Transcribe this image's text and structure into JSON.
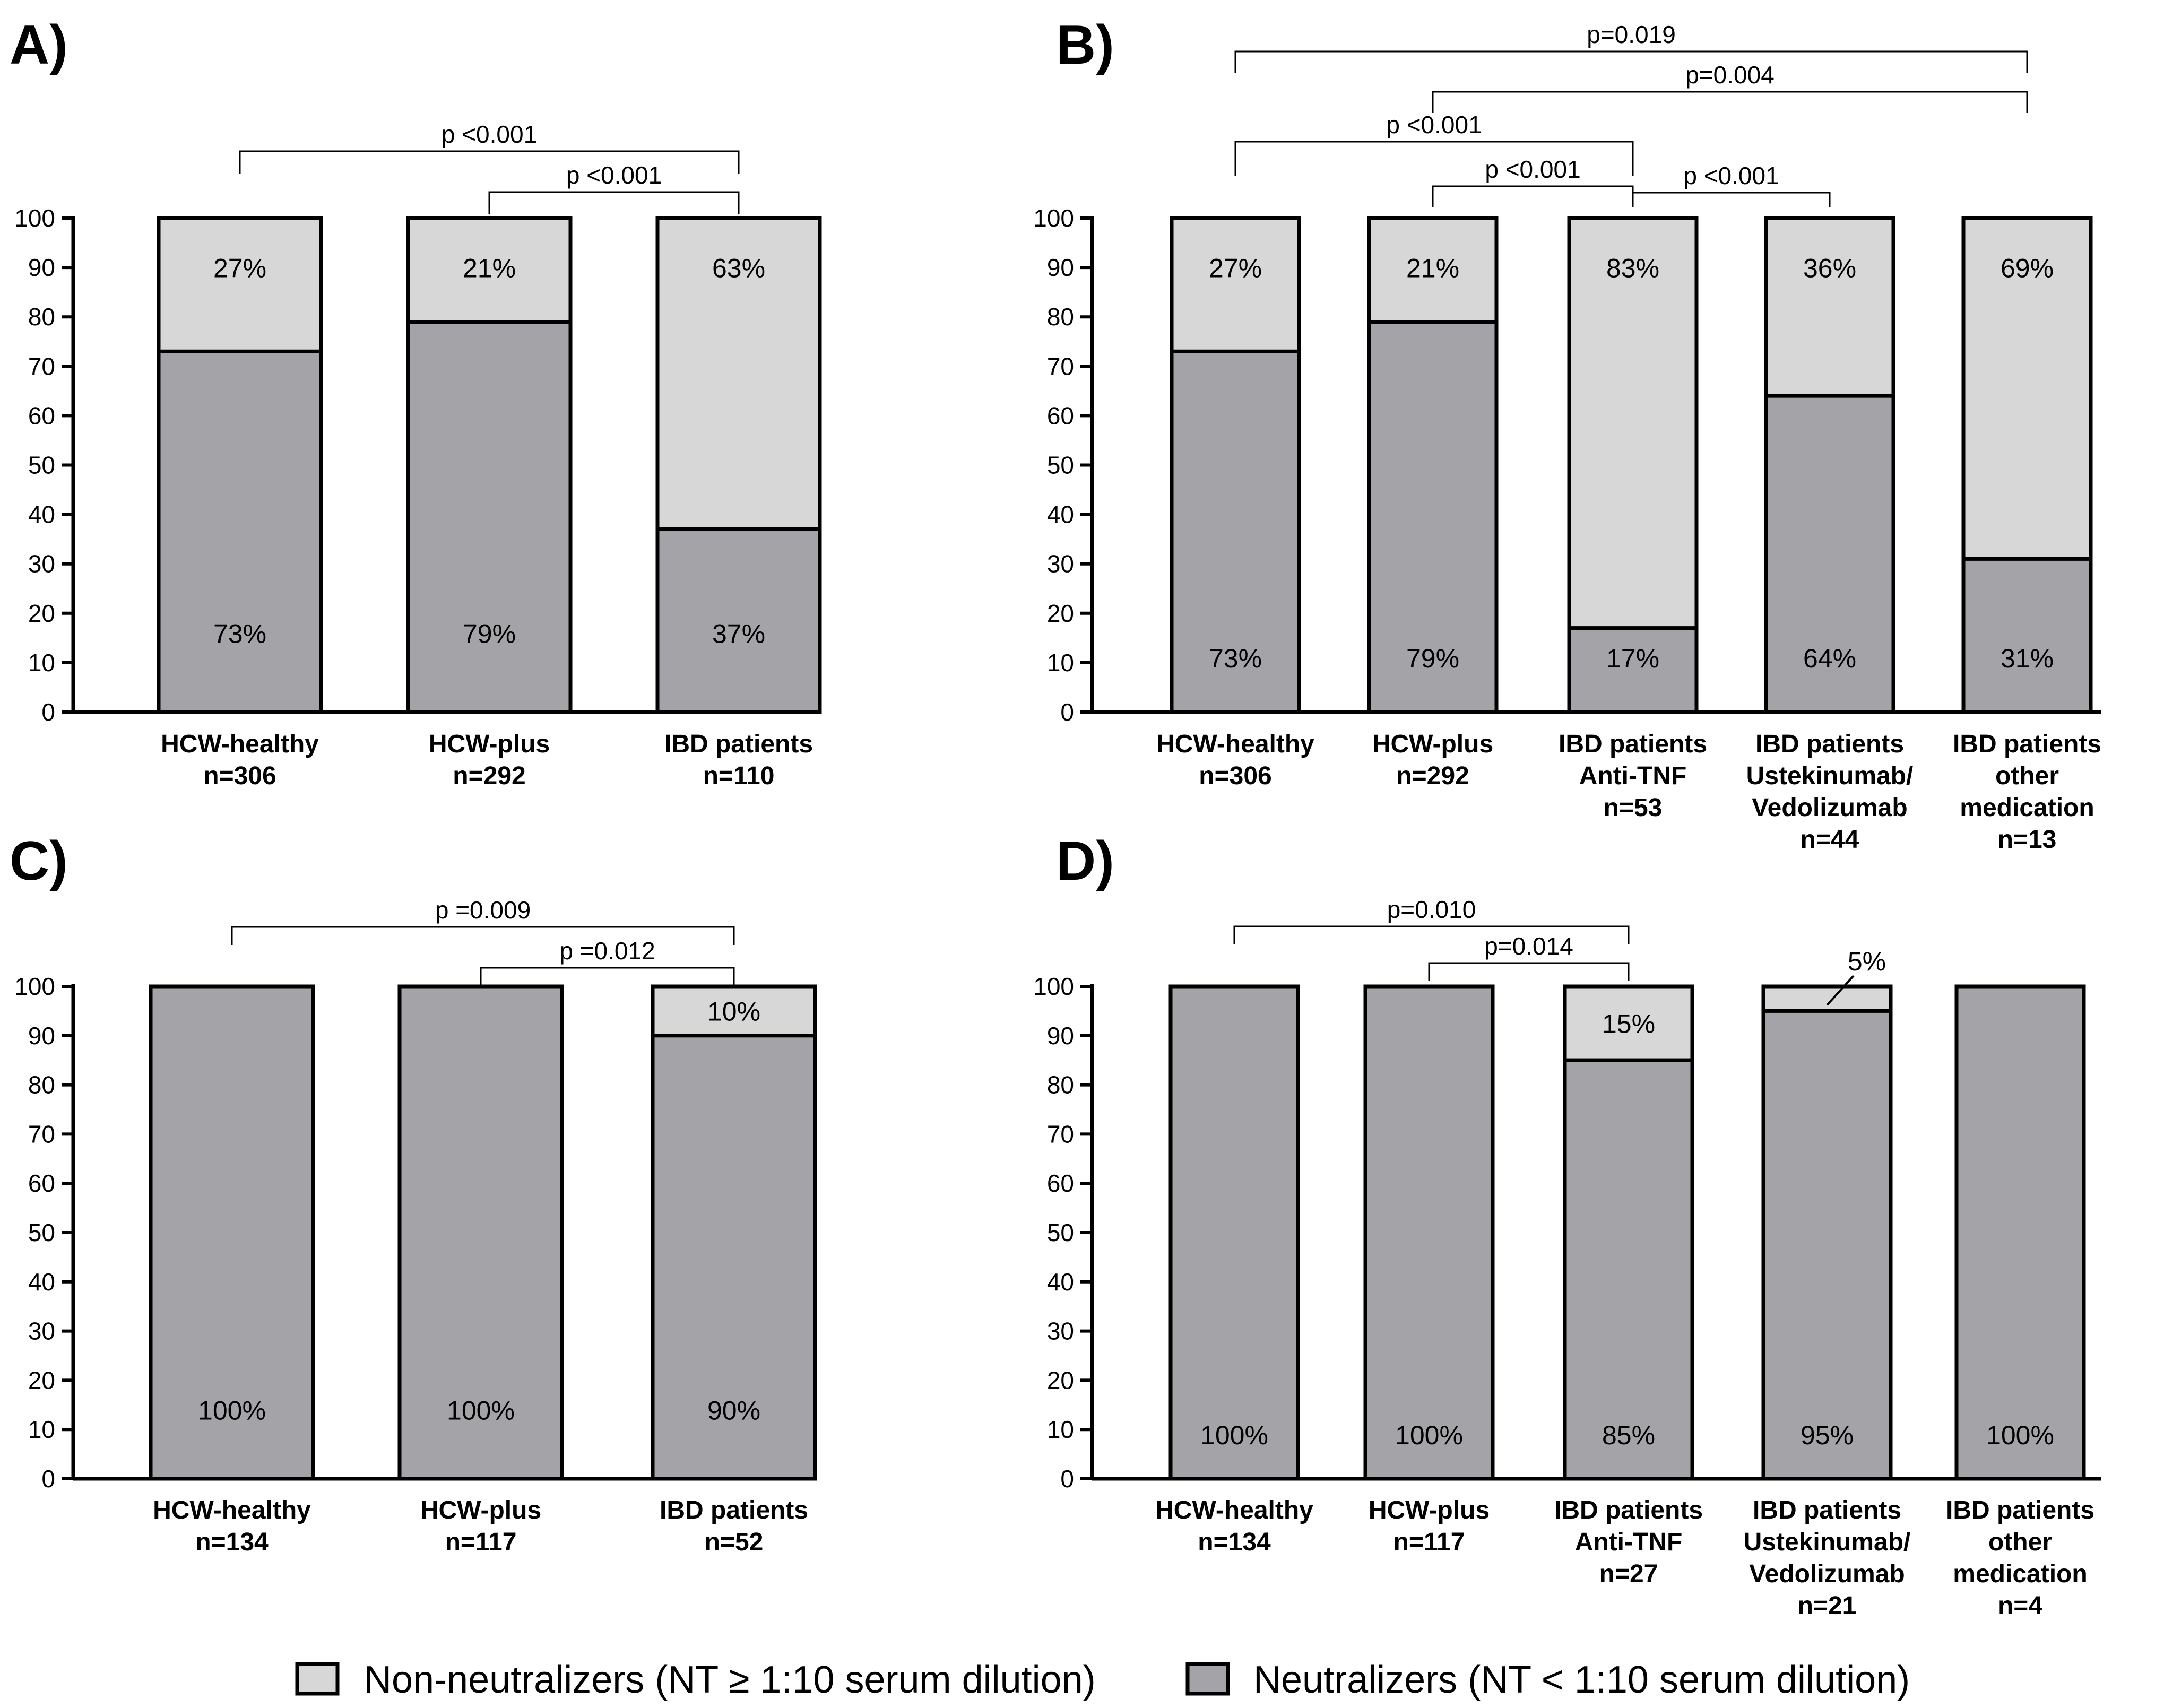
{
  "colors": {
    "neutralizer": "#a4a3a8",
    "non_neutralizer": "#d7d7d7",
    "stroke": "#000000"
  },
  "legend": {
    "non_neutralizers": "Non-neutralizers (NT ≥ 1:10 serum dilution)",
    "neutralizers": "Neutralizers (NT < 1:10 serum dilution)"
  },
  "chart_data": [
    {
      "panel": "A)",
      "type": "bar",
      "stacked": true,
      "ylim": [
        0,
        100
      ],
      "yticks": [
        0,
        10,
        20,
        30,
        40,
        50,
        60,
        70,
        80,
        90,
        100
      ],
      "categories": [
        [
          "HCW-healthy",
          "n=306"
        ],
        [
          "HCW-plus",
          "n=292"
        ],
        [
          "IBD patients",
          "n=110"
        ]
      ],
      "series": [
        {
          "name": "Neutralizers",
          "values": [
            73,
            79,
            37
          ],
          "labels": [
            "73%",
            "79%",
            "37%"
          ]
        },
        {
          "name": "Non-neutralizers",
          "values": [
            27,
            21,
            63
          ],
          "labels": [
            "27%",
            "21%",
            "63%"
          ]
        }
      ],
      "comparisons": [
        {
          "from": 0,
          "to": 2,
          "label": "p <0.001"
        },
        {
          "from": 1,
          "to": 2,
          "label": "p <0.001"
        }
      ]
    },
    {
      "panel": "B)",
      "type": "bar",
      "stacked": true,
      "ylim": [
        0,
        100
      ],
      "yticks": [
        0,
        10,
        20,
        30,
        40,
        50,
        60,
        70,
        80,
        90,
        100
      ],
      "categories": [
        [
          "HCW-healthy",
          "n=306"
        ],
        [
          "HCW-plus",
          "n=292"
        ],
        [
          "IBD patients",
          "Anti-TNF",
          "n=53"
        ],
        [
          "IBD patients",
          "Ustekinumab/",
          "Vedolizumab",
          "n=44"
        ],
        [
          "IBD patients",
          "other",
          "medication",
          "n=13"
        ]
      ],
      "series": [
        {
          "name": "Neutralizers",
          "values": [
            73,
            79,
            17,
            64,
            31
          ],
          "labels": [
            "73%",
            "79%",
            "17%",
            "64%",
            "31%"
          ]
        },
        {
          "name": "Non-neutralizers",
          "values": [
            27,
            21,
            83,
            36,
            69
          ],
          "labels": [
            "27%",
            "21%",
            "83%",
            "36%",
            "69%"
          ]
        }
      ],
      "comparisons": [
        {
          "from": 0,
          "to": 4,
          "label": "p=0.019"
        },
        {
          "from": 1,
          "to": 4,
          "label": "p=0.004"
        },
        {
          "from": 0,
          "to": 2,
          "label": "p <0.001"
        },
        {
          "from": 1,
          "to": 2,
          "label": "p <0.001"
        },
        {
          "from": 2,
          "to": 3,
          "label": "p <0.001"
        }
      ]
    },
    {
      "panel": "C)",
      "type": "bar",
      "stacked": true,
      "ylim": [
        0,
        100
      ],
      "yticks": [
        0,
        10,
        20,
        30,
        40,
        50,
        60,
        70,
        80,
        90,
        100
      ],
      "categories": [
        [
          "HCW-healthy",
          "n=134"
        ],
        [
          "HCW-plus",
          "n=117"
        ],
        [
          "IBD patients",
          "n=52"
        ]
      ],
      "series": [
        {
          "name": "Neutralizers",
          "values": [
            100,
            100,
            90
          ],
          "labels": [
            "100%",
            "100%",
            "90%"
          ]
        },
        {
          "name": "Non-neutralizers",
          "values": [
            0,
            0,
            10
          ],
          "labels": [
            "",
            "",
            "10%"
          ]
        }
      ],
      "comparisons": [
        {
          "from": 0,
          "to": 2,
          "label": "p =0.009"
        },
        {
          "from": 1,
          "to": 2,
          "label": "p =0.012"
        }
      ]
    },
    {
      "panel": "D)",
      "type": "bar",
      "stacked": true,
      "ylim": [
        0,
        100
      ],
      "yticks": [
        0,
        10,
        20,
        30,
        40,
        50,
        60,
        70,
        80,
        90,
        100
      ],
      "categories": [
        [
          "HCW-healthy",
          "n=134"
        ],
        [
          "HCW-plus",
          "n=117"
        ],
        [
          "IBD patients",
          "Anti-TNF",
          "n=27"
        ],
        [
          "IBD patients",
          "Ustekinumab/",
          "Vedolizumab",
          "n=21"
        ],
        [
          "IBD patients",
          "other",
          "medication",
          "n=4"
        ]
      ],
      "series": [
        {
          "name": "Neutralizers",
          "values": [
            100,
            100,
            85,
            95,
            100
          ],
          "labels": [
            "100%",
            "100%",
            "85%",
            "95%",
            "100%"
          ]
        },
        {
          "name": "Non-neutralizers",
          "values": [
            0,
            0,
            15,
            5,
            0
          ],
          "labels": [
            "",
            "",
            "15%",
            "5%",
            ""
          ]
        }
      ],
      "comparisons": [
        {
          "from": 0,
          "to": 2,
          "label": "p=0.010"
        },
        {
          "from": 1,
          "to": 2,
          "label": "p=0.014"
        }
      ]
    }
  ]
}
